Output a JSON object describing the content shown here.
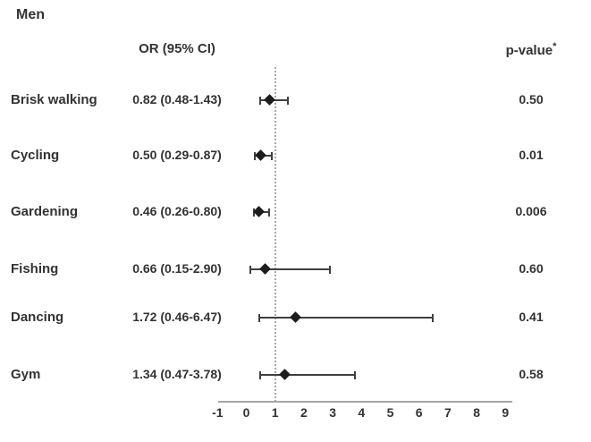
{
  "title": "Men",
  "columns": {
    "or_header": "OR (95% CI)",
    "p_header": "p-value",
    "p_header_superscript": "*"
  },
  "chart_data": {
    "type": "scatter",
    "variant": "forest-plot",
    "title": "Men",
    "xlabel": "",
    "ylabel": "",
    "xlim": [
      -1,
      9
    ],
    "x_ticks": [
      -1,
      0,
      1,
      2,
      3,
      4,
      5,
      6,
      7,
      8,
      9
    ],
    "reference_line_x": 1,
    "grid": false,
    "legend": "none",
    "rows": [
      {
        "label": "Brisk walking",
        "or": 0.82,
        "ci_low": 0.48,
        "ci_high": 1.43,
        "or_text": "0.82 (0.48-1.43)",
        "p_value": "0.50"
      },
      {
        "label": "Cycling",
        "or": 0.5,
        "ci_low": 0.29,
        "ci_high": 0.87,
        "or_text": "0.50 (0.29-0.87)",
        "p_value": "0.01"
      },
      {
        "label": "Gardening",
        "or": 0.46,
        "ci_low": 0.26,
        "ci_high": 0.8,
        "or_text": "0.46 (0.26-0.80)",
        "p_value": "0.006"
      },
      {
        "label": "Fishing",
        "or": 0.66,
        "ci_low": 0.15,
        "ci_high": 2.9,
        "or_text": "0.66 (0.15-2.90)",
        "p_value": "0.60"
      },
      {
        "label": "Dancing",
        "or": 1.72,
        "ci_low": 0.46,
        "ci_high": 6.47,
        "or_text": "1.72 (0.46-6.47)",
        "p_value": "0.41"
      },
      {
        "label": "Gym",
        "or": 1.34,
        "ci_low": 0.47,
        "ci_high": 3.78,
        "or_text": "1.34 (0.47-3.78)",
        "p_value": "0.58"
      }
    ],
    "colors": {
      "marker": "#1c1c1c",
      "error_bar": "#3f3f3f",
      "axis": "#a6a6a6",
      "reference_line": "#a8a8a8",
      "text": "#333333"
    }
  }
}
